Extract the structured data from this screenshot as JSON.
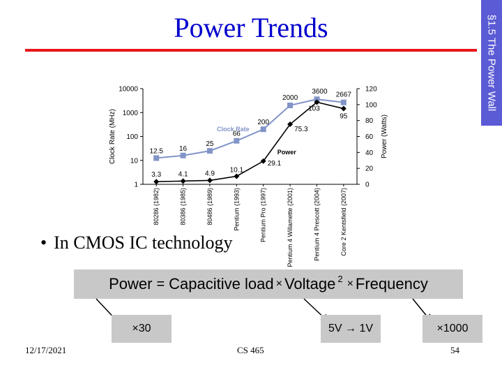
{
  "slide": {
    "title": "Power Trends",
    "side_tab": "§1.5 The Power Wall",
    "bullet": "In CMOS IC technology",
    "formula": {
      "power": "Power",
      "equals": "=",
      "cap": "Capacitive load",
      "times1": "×",
      "voltage": "Voltage",
      "exp": "2",
      "times2": "×",
      "freq": "Frequency"
    },
    "factors": {
      "cap": "×30",
      "voltage": "5V → 1V",
      "freq": "×1000"
    },
    "footer": {
      "date": "12/17/2021",
      "course": "CS 465",
      "page": "54"
    },
    "colors": {
      "title": "#0000cc",
      "rule": "#e8161b",
      "tab": "#5b5bd6",
      "clock": "#8294c8",
      "power": "#000000"
    }
  },
  "chart_data": {
    "type": "line",
    "categories": [
      "80286 (1982)",
      "80386 (1985)",
      "80486 (1989)",
      "Pentium (1993)",
      "Pentium Pro (1997)",
      "Pentium 4 Willamette (2001)",
      "Pentium 4 Prescott (2004)",
      "Core 2 Kentsfield (2007)"
    ],
    "series": [
      {
        "name": "Clock Rate",
        "axis": "left",
        "values": [
          12.5,
          16,
          25,
          66,
          200,
          2000,
          3600,
          2667
        ],
        "labels": [
          "12.5",
          "16",
          "25",
          "66",
          "200",
          "2000",
          "3600",
          "2667"
        ]
      },
      {
        "name": "Power",
        "axis": "right",
        "values": [
          3.3,
          4.1,
          4.9,
          10.1,
          29.1,
          75.3,
          103,
          95
        ],
        "labels": [
          "3.3",
          "4.1",
          "4.9",
          "10.1",
          "29.1",
          "75.3",
          "103",
          "95"
        ]
      }
    ],
    "ylabel_left": "Clock Rate (MHz)",
    "ylabel_right": "Power (Watts)",
    "left_axis": {
      "scale": "log",
      "ticks": [
        1,
        10,
        100,
        1000,
        10000
      ],
      "tick_labels": [
        "1",
        "10",
        "100",
        "1000",
        "10000"
      ]
    },
    "right_axis": {
      "scale": "linear",
      "ylim": [
        0,
        120
      ],
      "ticks": [
        0,
        20,
        40,
        60,
        80,
        100,
        120
      ],
      "tick_labels": [
        "0",
        "20",
        "40",
        "60",
        "80",
        "100",
        "120"
      ]
    },
    "grid": false
  }
}
